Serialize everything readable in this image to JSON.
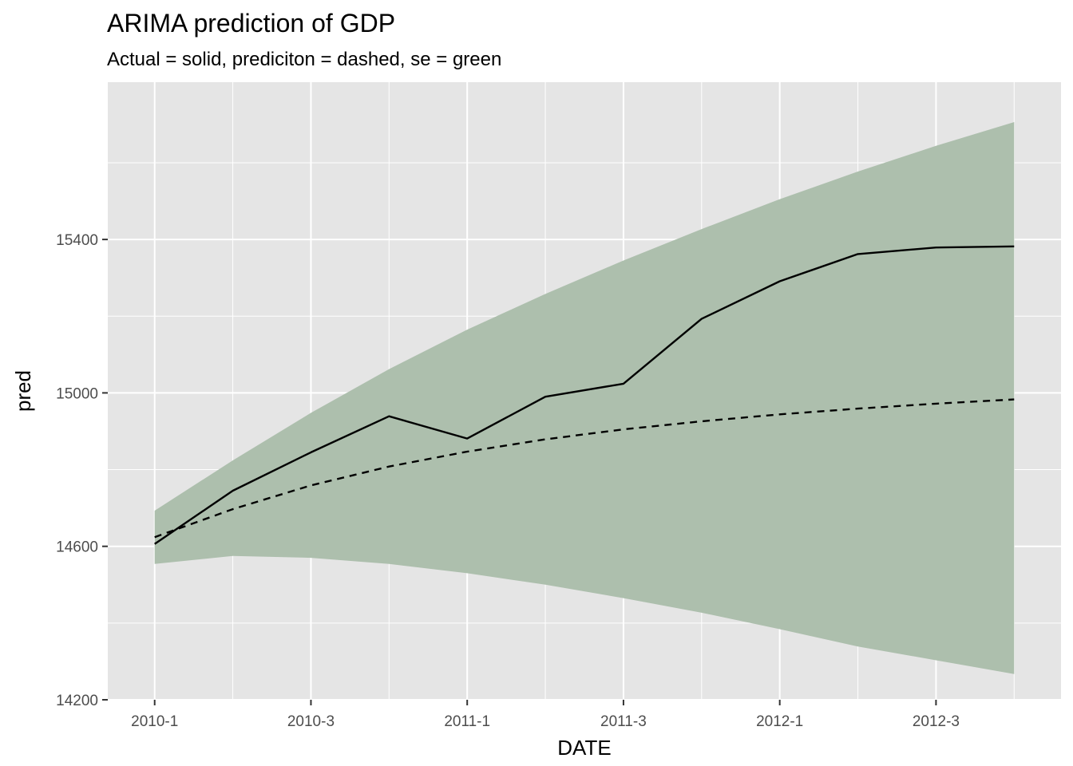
{
  "chart_data": {
    "type": "line",
    "title": "ARIMA prediction of GDP",
    "subtitle": "Actual = solid, prediciton = dashed, se = green",
    "xlabel": "DATE",
    "ylabel": "pred",
    "x": [
      "2010-1",
      "2010-2",
      "2010-3",
      "2010-4",
      "2011-1",
      "2011-2",
      "2011-3",
      "2011-4",
      "2012-1",
      "2012-2",
      "2012-3",
      "2012-4"
    ],
    "x_tick_labels": [
      "2010-1",
      "2010-3",
      "2011-1",
      "2011-3",
      "2012-1",
      "2012-3"
    ],
    "y_tick_labels": [
      "14200",
      "14600",
      "15000",
      "15400"
    ],
    "ylim": [
      14200,
      15810
    ],
    "grid": true,
    "series": [
      {
        "style": "solid",
        "values": [
          14606,
          14745,
          14845,
          14939,
          14881,
          14990,
          15024,
          15193,
          15291,
          15362,
          15379,
          15382
        ]
      },
      {
        "style": "dashed",
        "values": [
          14624,
          14697,
          14759,
          14808,
          14847,
          14879,
          14905,
          14926,
          14944,
          14959,
          14972,
          14983
        ]
      }
    ],
    "band": {
      "color": "#adbfad",
      "upper": [
        14693,
        14824,
        14948,
        15062,
        15165,
        15258,
        15345,
        15427,
        15505,
        15577,
        15644,
        15706
      ],
      "lower": [
        14554,
        14575,
        14570,
        14554,
        14530,
        14500,
        14465,
        14427,
        14384,
        14339,
        14303,
        14267
      ]
    },
    "colors": {
      "panel_background": "#e5e5e5",
      "grid": "#ffffff",
      "line": "#000000"
    }
  }
}
